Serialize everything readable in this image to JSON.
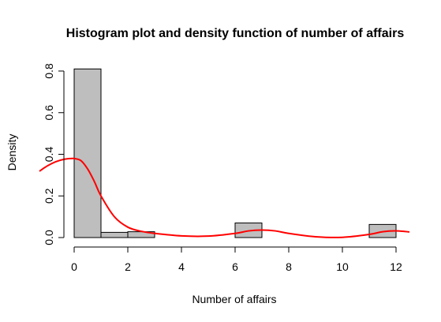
{
  "chart_data": {
    "type": "bar",
    "title": "Histogram plot and density function of number of affairs",
    "xlabel": "Number of affairs",
    "ylabel": "Density",
    "xlim": [
      0,
      12.5
    ],
    "ylim": [
      0,
      0.8
    ],
    "x_ticks": [
      "0",
      "2",
      "4",
      "6",
      "8",
      "10",
      "12"
    ],
    "y_ticks": [
      "0.0",
      "0.2",
      "0.4",
      "0.6",
      "0.8"
    ],
    "bins": [
      {
        "x0": 0,
        "x1": 1,
        "density": 0.81
      },
      {
        "x0": 1,
        "x1": 2,
        "density": 0.025
      },
      {
        "x0": 2,
        "x1": 3,
        "density": 0.028
      },
      {
        "x0": 6,
        "x1": 7,
        "density": 0.07
      },
      {
        "x0": 11,
        "x1": 12,
        "density": 0.063
      }
    ],
    "bar_color": "#bebebe",
    "density_color": "#ff0000",
    "density_curve": {
      "x": [
        0.0,
        0.25,
        0.5,
        0.75,
        1.0,
        1.5,
        2.0,
        2.5,
        3.0,
        4.0,
        5.0,
        6.0,
        6.5,
        7.0,
        7.5,
        8.0,
        9.0,
        10.0,
        11.0,
        11.5,
        12.0,
        12.5
      ],
      "y": [
        0.38,
        0.37,
        0.33,
        0.27,
        0.2,
        0.1,
        0.05,
        0.03,
        0.02,
        0.008,
        0.007,
        0.02,
        0.032,
        0.036,
        0.032,
        0.02,
        0.004,
        0.001,
        0.015,
        0.028,
        0.032,
        0.027
      ]
    }
  }
}
